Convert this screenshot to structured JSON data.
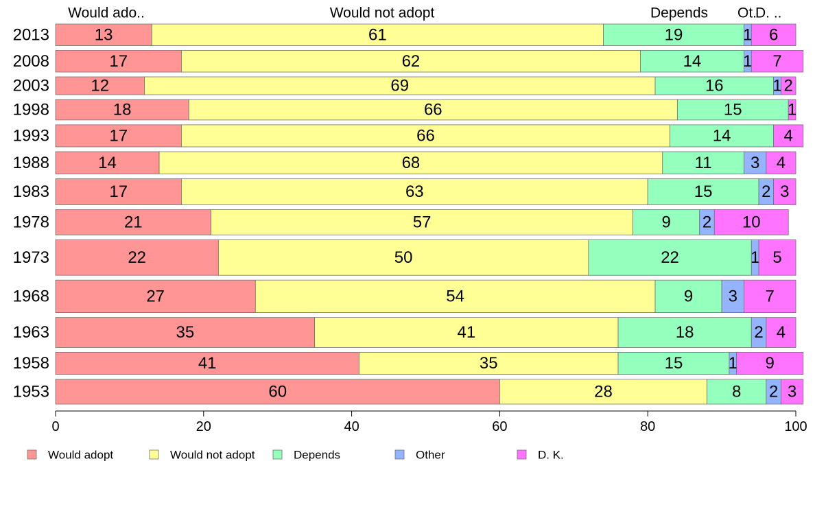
{
  "chart_data": {
    "type": "bar",
    "orientation": "horizontal",
    "stacked": true,
    "categories": [
      "2013",
      "2008",
      "2003",
      "1998",
      "1993",
      "1988",
      "1983",
      "1978",
      "1973",
      "1968",
      "1963",
      "1958",
      "1953"
    ],
    "series": [
      {
        "name": "Would adopt",
        "color": "#ff9595",
        "values": [
          13,
          17,
          12,
          18,
          17,
          14,
          17,
          21,
          22,
          27,
          35,
          41,
          60
        ]
      },
      {
        "name": "Would not adopt",
        "color": "#ffff95",
        "values": [
          61,
          62,
          69,
          66,
          66,
          68,
          63,
          57,
          50,
          54,
          41,
          35,
          28
        ]
      },
      {
        "name": "Depends",
        "color": "#95ffbe",
        "values": [
          19,
          14,
          16,
          15,
          14,
          11,
          15,
          9,
          22,
          9,
          18,
          15,
          8
        ]
      },
      {
        "name": "Other",
        "color": "#95b4ff",
        "values": [
          1,
          1,
          1,
          0,
          0,
          3,
          2,
          2,
          1,
          3,
          2,
          1,
          2
        ]
      },
      {
        "name": "D. K.",
        "color": "#ff74ff",
        "values": [
          6,
          7,
          2,
          1,
          4,
          4,
          3,
          10,
          5,
          7,
          4,
          9,
          3
        ]
      }
    ],
    "category_weights": [
      0.97,
      0.97,
      0.8,
      0.92,
      0.99,
      1.0,
      1.17,
      1.14,
      1.59,
      1.46,
      1.35,
      0.99,
      1.12
    ],
    "top_labels": [
      "Would ado..",
      "Would not adopt",
      "Depends",
      "Ot.",
      "D. .."
    ],
    "xticks": [
      0,
      20,
      40,
      60,
      80,
      100
    ],
    "xlim": [
      0,
      100
    ],
    "grid": false,
    "legend_position": "bottom"
  }
}
